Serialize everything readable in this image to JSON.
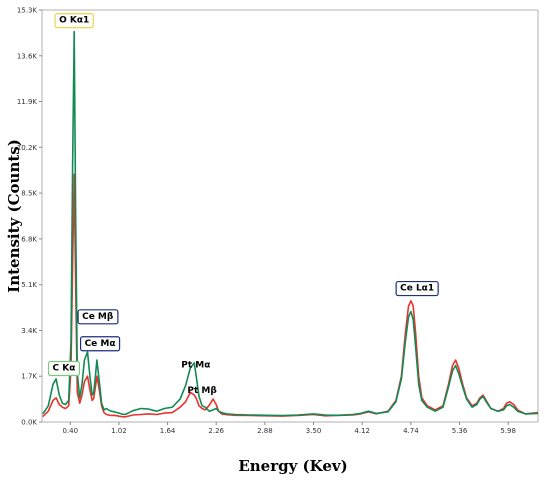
{
  "chart_data": {
    "type": "line",
    "xlabel": "Energy (Kev)",
    "ylabel": "Intensity (Counts)",
    "xlim": [
      0.04,
      6.36
    ],
    "ylim": [
      0,
      15300
    ],
    "x_ticks": [
      {
        "value": 0.4,
        "label": "0.40"
      },
      {
        "value": 1.02,
        "label": "1.02"
      },
      {
        "value": 1.64,
        "label": "1.64"
      },
      {
        "value": 2.26,
        "label": "2.26"
      },
      {
        "value": 2.88,
        "label": "2.88"
      },
      {
        "value": 3.5,
        "label": "3.50"
      },
      {
        "value": 4.12,
        "label": "4.12"
      },
      {
        "value": 4.74,
        "label": "4.74"
      },
      {
        "value": 5.36,
        "label": "5.36"
      },
      {
        "value": 5.98,
        "label": "5.98"
      }
    ],
    "y_ticks": [
      {
        "value": 0,
        "label": "0.0K"
      },
      {
        "value": 1700,
        "label": "1.7K"
      },
      {
        "value": 3400,
        "label": "3.4K"
      },
      {
        "value": 5100,
        "label": "5.1K"
      },
      {
        "value": 6800,
        "label": "6.8K"
      },
      {
        "value": 8500,
        "label": "8.5K"
      },
      {
        "value": 10200,
        "label": "10.2K"
      },
      {
        "value": 11900,
        "label": "11.9K"
      },
      {
        "value": 13600,
        "label": "13.6K"
      },
      {
        "value": 15300,
        "label": "15.3K"
      }
    ],
    "grid": false,
    "series": [
      {
        "color": "#e8322b",
        "x": [
          0.05,
          0.12,
          0.18,
          0.22,
          0.26,
          0.3,
          0.34,
          0.38,
          0.41,
          0.43,
          0.45,
          0.47,
          0.49,
          0.52,
          0.55,
          0.58,
          0.62,
          0.65,
          0.68,
          0.7,
          0.72,
          0.74,
          0.77,
          0.8,
          0.83,
          0.86,
          0.89,
          0.92,
          0.96,
          1.0,
          1.05,
          1.1,
          1.2,
          1.3,
          1.4,
          1.5,
          1.6,
          1.7,
          1.8,
          1.87,
          1.93,
          1.98,
          2.01,
          2.04,
          2.08,
          2.12,
          2.17,
          2.22,
          2.26,
          2.29,
          2.33,
          2.4,
          2.5,
          2.7,
          2.9,
          3.1,
          3.3,
          3.5,
          3.65,
          3.8,
          4.0,
          4.1,
          4.2,
          4.3,
          4.45,
          4.55,
          4.62,
          4.67,
          4.71,
          4.74,
          4.77,
          4.8,
          4.84,
          4.88,
          4.95,
          5.05,
          5.15,
          5.22,
          5.27,
          5.31,
          5.35,
          5.4,
          5.45,
          5.52,
          5.58,
          5.62,
          5.66,
          5.7,
          5.76,
          5.85,
          5.92,
          5.96,
          6.0,
          6.05,
          6.1,
          6.2,
          6.36
        ],
        "y": [
          200,
          400,
          800,
          900,
          650,
          550,
          500,
          600,
          2000,
          5800,
          9200,
          5000,
          1100,
          700,
          1000,
          1500,
          1700,
          1200,
          800,
          900,
          1300,
          1700,
          1200,
          600,
          350,
          280,
          260,
          240,
          250,
          230,
          200,
          190,
          260,
          280,
          300,
          280,
          330,
          350,
          550,
          750,
          1100,
          1000,
          850,
          600,
          500,
          450,
          620,
          850,
          650,
          400,
          300,
          270,
          250,
          240,
          230,
          220,
          240,
          280,
          230,
          240,
          260,
          300,
          380,
          300,
          400,
          800,
          1700,
          3300,
          4300,
          4500,
          4300,
          3300,
          1700,
          900,
          600,
          450,
          600,
          1400,
          2100,
          2300,
          2000,
          1400,
          900,
          600,
          700,
          900,
          1000,
          800,
          500,
          400,
          500,
          700,
          750,
          650,
          450,
          300,
          350
        ]
      },
      {
        "color": "#128a55",
        "x": [
          0.05,
          0.12,
          0.18,
          0.22,
          0.26,
          0.3,
          0.34,
          0.38,
          0.41,
          0.43,
          0.45,
          0.47,
          0.49,
          0.52,
          0.55,
          0.58,
          0.62,
          0.65,
          0.68,
          0.7,
          0.72,
          0.74,
          0.77,
          0.8,
          0.83,
          0.86,
          0.89,
          0.92,
          0.96,
          1.0,
          1.05,
          1.1,
          1.2,
          1.3,
          1.4,
          1.5,
          1.6,
          1.7,
          1.8,
          1.87,
          1.93,
          1.98,
          2.01,
          2.04,
          2.08,
          2.12,
          2.17,
          2.22,
          2.26,
          2.29,
          2.33,
          2.4,
          2.5,
          2.7,
          2.9,
          3.1,
          3.3,
          3.5,
          3.65,
          3.8,
          4.0,
          4.1,
          4.2,
          4.3,
          4.45,
          4.55,
          4.62,
          4.67,
          4.71,
          4.74,
          4.77,
          4.8,
          4.84,
          4.88,
          4.95,
          5.05,
          5.15,
          5.22,
          5.27,
          5.31,
          5.35,
          5.4,
          5.45,
          5.52,
          5.58,
          5.62,
          5.66,
          5.7,
          5.76,
          5.85,
          5.92,
          5.96,
          6.0,
          6.05,
          6.1,
          6.2,
          6.36
        ],
        "y": [
          300,
          600,
          1400,
          1600,
          1000,
          700,
          650,
          800,
          3000,
          9500,
          14500,
          7500,
          1800,
          900,
          1400,
          2300,
          2600,
          1700,
          1000,
          1100,
          1700,
          2300,
          1500,
          700,
          450,
          500,
          450,
          400,
          380,
          350,
          300,
          280,
          420,
          500,
          480,
          400,
          500,
          550,
          850,
          1350,
          2000,
          2200,
          1600,
          950,
          600,
          550,
          400,
          450,
          500,
          400,
          350,
          300,
          280,
          260,
          250,
          240,
          260,
          300,
          260,
          250,
          280,
          320,
          400,
          320,
          380,
          750,
          1600,
          3000,
          3900,
          4100,
          3800,
          2800,
          1400,
          800,
          550,
          400,
          550,
          1300,
          1900,
          2100,
          1800,
          1300,
          850,
          550,
          650,
          850,
          950,
          750,
          500,
          400,
          450,
          600,
          650,
          550,
          400,
          300,
          320
        ]
      }
    ],
    "annotations": [
      {
        "text": "O  Kα1",
        "x": 0.45,
        "y": 14950,
        "border": "#e8d84a",
        "bold": true
      },
      {
        "text": "Ce Mβ",
        "x": 0.75,
        "y": 3950,
        "border": "#1c2f7c",
        "bold": true
      },
      {
        "text": "Ce Mα",
        "x": 0.78,
        "y": 2950,
        "border": "#1c2f7c",
        "bold": true
      },
      {
        "text": "C  Kα",
        "x": 0.32,
        "y": 2030,
        "border": "#7ec77e",
        "bold": true
      },
      {
        "text": "Pt Mα",
        "x": 2.0,
        "y": 2150,
        "border": "none",
        "bold": true
      },
      {
        "text": "Pt Mβ",
        "x": 2.08,
        "y": 1200,
        "border": "none",
        "bold": true
      },
      {
        "text": "Ce Lα1",
        "x": 4.82,
        "y": 5000,
        "border": "#1c2f7c",
        "bold": true
      }
    ]
  }
}
